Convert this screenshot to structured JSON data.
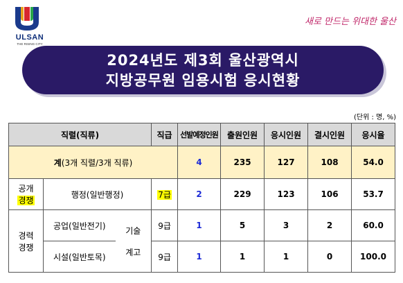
{
  "logo": {
    "city": "ULSAN",
    "sub": "THE RISING CITY"
  },
  "slogan": "새로 만드는 위대한 울산",
  "banner": {
    "line1": "2024년도 제3회 울산광역시",
    "line2": "지방공무원 임용시험 응시현황"
  },
  "unit_note": "(단위 : 명, %)",
  "table": {
    "headers": {
      "position": "직렬(직류)",
      "grade": "직급",
      "planned": "선발예정인원",
      "applied": "출원인원",
      "took": "응시인원",
      "absent": "결시인원",
      "rate": "응시율"
    },
    "total": {
      "label_bold": "계",
      "label_rest": "(3개 직렬/3개 직류)",
      "planned": "4",
      "applied": "235",
      "took": "127",
      "absent": "108",
      "rate": "54.0"
    },
    "open_group": {
      "line1": "공개",
      "line2": "경쟁"
    },
    "career_group": {
      "line1": "경력",
      "line2": "경쟁"
    },
    "tech_group": {
      "line1": "기술",
      "line2": "계고"
    },
    "rows": [
      {
        "name": "행정(일반행정)",
        "grade": "7급",
        "planned": "2",
        "applied": "229",
        "took": "123",
        "absent": "106",
        "rate": "53.7"
      },
      {
        "name": "공업(일반전기)",
        "grade": "9급",
        "planned": "1",
        "applied": "5",
        "took": "3",
        "absent": "2",
        "rate": "60.0"
      },
      {
        "name": "시설(일반토목)",
        "grade": "9급",
        "planned": "1",
        "applied": "1",
        "took": "1",
        "absent": "0",
        "rate": "100.0"
      }
    ]
  },
  "colors": {
    "banner": "#2a1a66",
    "header_bg": "#d9d9d9",
    "total_bg": "#fff2c6",
    "highlight": "#ffff00",
    "blue_text": "#1d2bd6",
    "slogan": "#c0286a"
  }
}
